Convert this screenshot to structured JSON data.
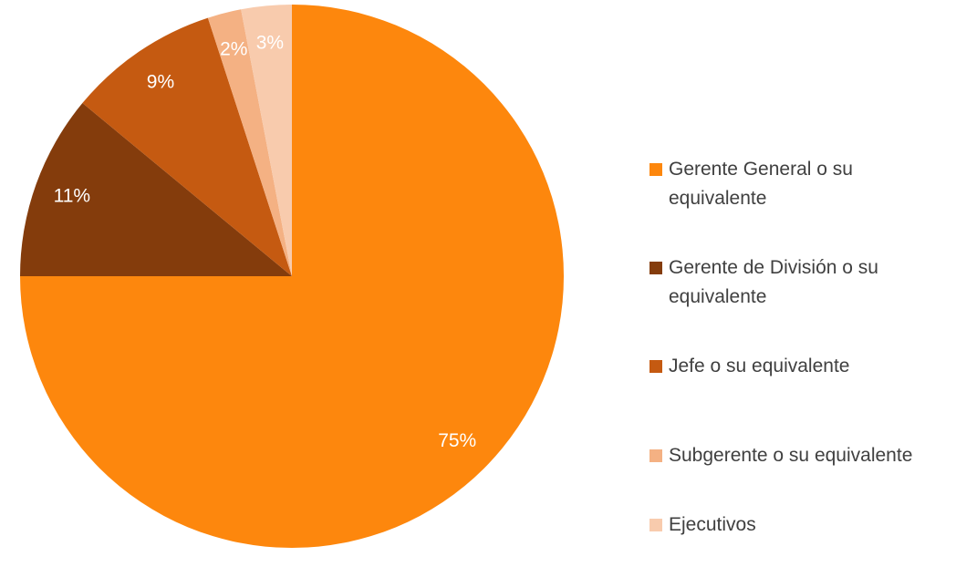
{
  "chart_data": {
    "type": "pie",
    "categories": [
      "Gerente General o su equivalente",
      "Gerente de División o su equivalente",
      "Jefe o su equivalente",
      "Subgerente o su equivalente",
      "Ejecutivos"
    ],
    "values": [
      75,
      11,
      9,
      2,
      3
    ],
    "value_labels": [
      "75%",
      "11%",
      "9%",
      "2%",
      "3%"
    ],
    "colors": [
      "#fd870d",
      "#843c0c",
      "#c55a11",
      "#f4b183",
      "#f8cbad"
    ],
    "legend": "right"
  }
}
